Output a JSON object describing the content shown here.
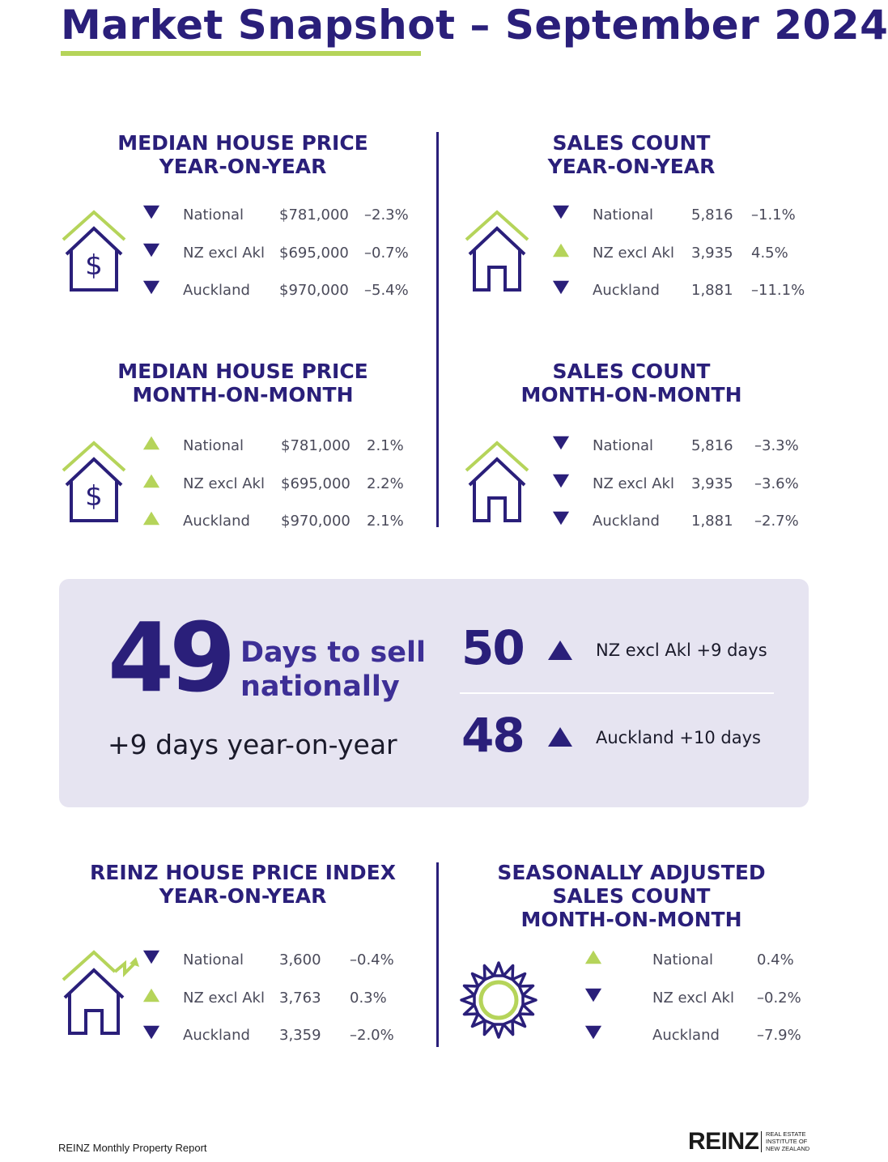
{
  "title": "Market Snapshot – September 2024",
  "colors": {
    "navy": "#2a1f7a",
    "green": "#b5d45a",
    "panel": "#e6e4f1"
  },
  "sections": {
    "median_yoy": {
      "title_line1": "MEDIAN HOUSE PRICE",
      "title_line2": "YEAR-ON-YEAR",
      "icon": "house-dollar-icon",
      "rows": [
        {
          "direction": "down",
          "label": "National",
          "value": "$781,000",
          "change": "–2.3%"
        },
        {
          "direction": "down",
          "label": "NZ excl Akl",
          "value": "$695,000",
          "change": "–0.7%"
        },
        {
          "direction": "down",
          "label": "Auckland",
          "value": "$970,000",
          "change": "–5.4%"
        }
      ]
    },
    "sales_yoy": {
      "title_line1": "SALES COUNT",
      "title_line2": "YEAR-ON-YEAR",
      "icon": "house-icon",
      "rows": [
        {
          "direction": "down",
          "label": "National",
          "value": "5,816",
          "change": "–1.1%"
        },
        {
          "direction": "up",
          "label": "NZ excl Akl",
          "value": "3,935",
          "change": "4.5%"
        },
        {
          "direction": "down",
          "label": "Auckland",
          "value": "1,881",
          "change": "–11.1%"
        }
      ]
    },
    "median_mom": {
      "title_line1": "MEDIAN HOUSE PRICE",
      "title_line2": "MONTH-ON-MONTH",
      "icon": "house-dollar-icon",
      "rows": [
        {
          "direction": "up",
          "label": "National",
          "value": "$781,000",
          "change": "2.1%"
        },
        {
          "direction": "up",
          "label": "NZ excl Akl",
          "value": "$695,000",
          "change": "2.2%"
        },
        {
          "direction": "up",
          "label": "Auckland",
          "value": "$970,000",
          "change": "2.1%"
        }
      ]
    },
    "sales_mom": {
      "title_line1": "SALES COUNT",
      "title_line2": "MONTH-ON-MONTH",
      "icon": "house-icon",
      "rows": [
        {
          "direction": "down",
          "label": "National",
          "value": "5,816",
          "change": "–3.3%"
        },
        {
          "direction": "down",
          "label": "NZ excl Akl",
          "value": "3,935",
          "change": "–3.6%"
        },
        {
          "direction": "down",
          "label": "Auckland",
          "value": "1,881",
          "change": "–2.7%"
        }
      ]
    },
    "hpi_yoy": {
      "title_line1": "REINZ HOUSE PRICE INDEX",
      "title_line2": "YEAR-ON-YEAR",
      "icon": "house-trend-icon",
      "rows": [
        {
          "direction": "down",
          "label": "National",
          "value": "3,600",
          "change": "–0.4%"
        },
        {
          "direction": "up",
          "label": "NZ excl Akl",
          "value": "3,763",
          "change": "0.3%"
        },
        {
          "direction": "down",
          "label": "Auckland",
          "value": "3,359",
          "change": "–2.0%"
        }
      ]
    },
    "seasonal_mom": {
      "title_line1": "SEASONALLY ADJUSTED",
      "title_line2": "SALES COUNT",
      "title_line3": "MONTH-ON-MONTH",
      "icon": "sun-icon",
      "rows": [
        {
          "direction": "up",
          "label": "National",
          "change": "0.4%"
        },
        {
          "direction": "down",
          "label": "NZ excl Akl",
          "change": "–0.2%"
        },
        {
          "direction": "down",
          "label": "Auckland",
          "change": "–7.9%"
        }
      ]
    }
  },
  "days_to_sell": {
    "national_value": "49",
    "label_line1": "Days to sell",
    "label_line2": "nationally",
    "yoy_text": "+9 days year-on-year",
    "regions": [
      {
        "value": "50",
        "direction": "up",
        "label": "NZ excl Akl  +9 days"
      },
      {
        "value": "48",
        "direction": "up",
        "label": "Auckland  +10 days"
      }
    ]
  },
  "footer": {
    "report_name": "REINZ Monthly Property Report",
    "logo_word": "REINZ",
    "logo_line1": "REAL ESTATE",
    "logo_line2": "INSTITUTE OF",
    "logo_line3": "NEW ZEALAND"
  }
}
